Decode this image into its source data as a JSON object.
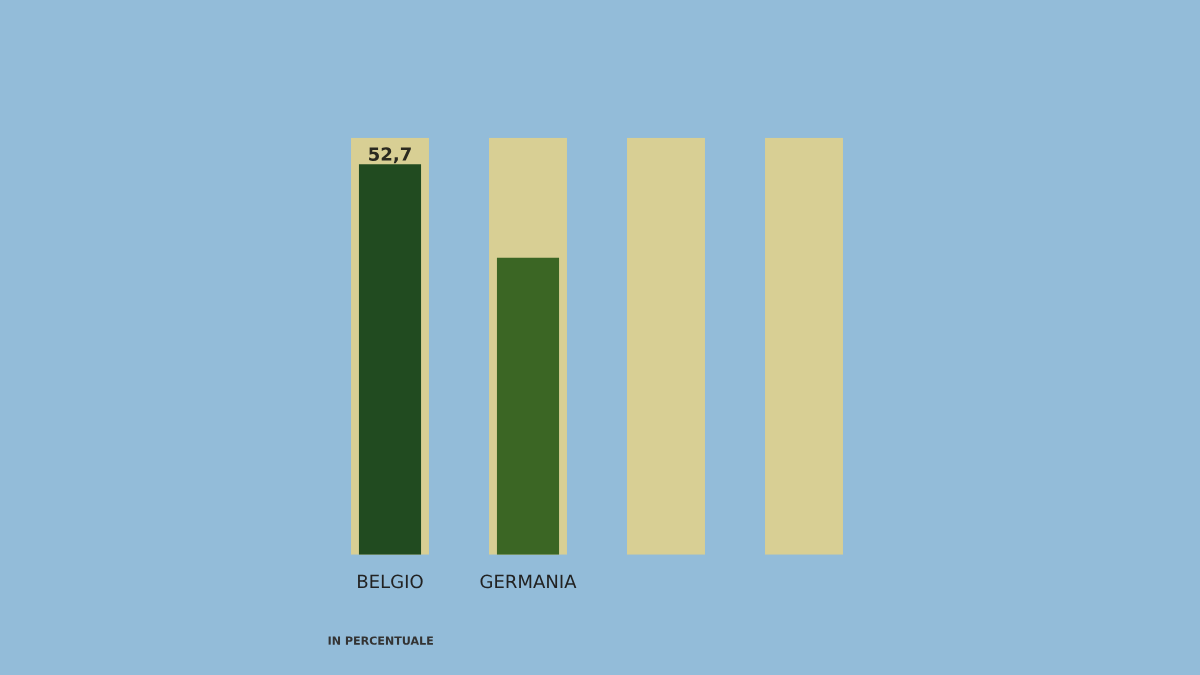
{
  "chart_data": {
    "type": "bar",
    "categories": [
      "BELGIO",
      "GERMANIA",
      null,
      null
    ],
    "series": [
      {
        "color": "#d8cf94",
        "values": [
          56.3,
          56.3,
          56.3,
          56.3
        ]
      },
      {
        "colors": [
          "#214b20",
          "#3b6624",
          null,
          null
        ],
        "values": [
          52.7,
          40.1,
          null,
          null
        ],
        "value_labels": [
          "52,7",
          null,
          null,
          null
        ]
      }
    ],
    "annotations": [
      "IN PERCENTUALE"
    ],
    "grid": false,
    "legend": false
  }
}
